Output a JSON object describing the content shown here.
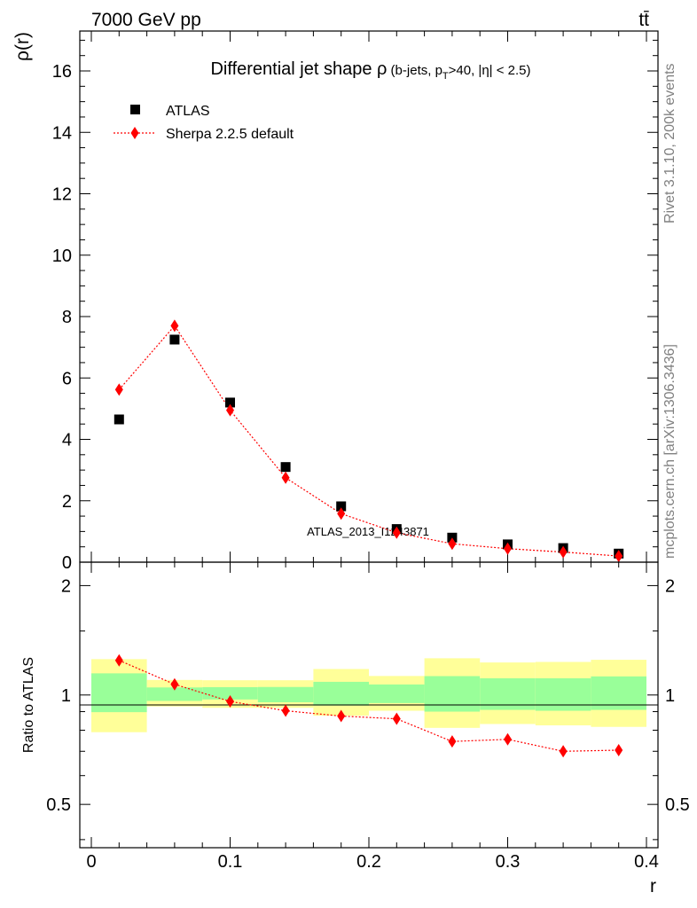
{
  "header": {
    "left_label": "7000 GeV pp",
    "right_label": "tt̄"
  },
  "side_labels": {
    "rivet": "Rivet 3.1.10,  200k events",
    "mcplots": "mcplots.cern.ch [arXiv:1306.3436]"
  },
  "watermark": "ATLAS_2013_I1243871",
  "colors": {
    "data": "#000000",
    "mc": "#ff0000",
    "band_inner": "#99ff99",
    "band_outer": "#ffff99"
  },
  "chart_data": [
    {
      "type": "scatter",
      "panel": "main",
      "title_main": "Differential jet shape ρ",
      "title_sub_pre": " (b-jets, p",
      "title_sub_sub": "T",
      "title_sub_post": ">40, |η| < 2.5)",
      "ylabel": "ρ(r)",
      "xlabel": "",
      "xlim": [
        0,
        0.4
      ],
      "ylim": [
        0,
        17.3
      ],
      "yticks": [
        0,
        2,
        4,
        6,
        8,
        10,
        12,
        14,
        16
      ],
      "ytick_labels": [
        "0",
        "2",
        "4",
        "6",
        "8",
        "10",
        "12",
        "14",
        "16"
      ],
      "legend": {
        "placement": "top-left",
        "entries": [
          "ATLAS",
          "Sherpa 2.2.5 default"
        ]
      },
      "x": [
        0.02,
        0.06,
        0.1,
        0.14,
        0.18,
        0.22,
        0.26,
        0.3,
        0.34,
        0.38
      ],
      "series": [
        {
          "name": "ATLAS",
          "marker": "square",
          "values": [
            4.65,
            7.25,
            5.2,
            3.1,
            1.82,
            1.08,
            0.8,
            0.58,
            0.46,
            0.28
          ]
        },
        {
          "name": "Sherpa 2.2.5 default",
          "marker": "diamond",
          "line": "dotted",
          "values": [
            5.62,
            7.7,
            4.95,
            2.75,
            1.58,
            0.96,
            0.6,
            0.44,
            0.33,
            0.2
          ]
        }
      ]
    },
    {
      "type": "line",
      "panel": "ratio",
      "ylabel": "Ratio to ATLAS",
      "xlabel": "r",
      "xlim": [
        0,
        0.4
      ],
      "ylim": [
        0.38,
        2.32
      ],
      "log_y": true,
      "yticks": [
        0.5,
        1,
        2
      ],
      "ytick_labels": [
        "0.5",
        "1",
        "2"
      ],
      "xticks": [
        0,
        0.1,
        0.2,
        0.3,
        0.4
      ],
      "xtick_labels": [
        "0",
        "0.1",
        "0.2",
        "0.3",
        "0.4"
      ],
      "bins": [
        {
          "lo": 0.0,
          "hi": 0.04,
          "inner": [
            0.897,
            1.147
          ],
          "outer": [
            0.79,
            1.255
          ]
        },
        {
          "lo": 0.04,
          "hi": 0.08,
          "inner": [
            0.963,
            1.049
          ],
          "outer": [
            0.93,
            1.1
          ]
        },
        {
          "lo": 0.08,
          "hi": 0.12,
          "inner": [
            0.972,
            1.051
          ],
          "outer": [
            0.922,
            1.098
          ]
        },
        {
          "lo": 0.12,
          "hi": 0.16,
          "inner": [
            0.955,
            1.052
          ],
          "outer": [
            0.922,
            1.098
          ]
        },
        {
          "lo": 0.16,
          "hi": 0.2,
          "inner": [
            0.935,
            1.087
          ],
          "outer": [
            0.877,
            1.179
          ]
        },
        {
          "lo": 0.2,
          "hi": 0.24,
          "inner": [
            0.95,
            1.069
          ],
          "outer": [
            0.905,
            1.128
          ]
        },
        {
          "lo": 0.24,
          "hi": 0.28,
          "inner": [
            0.9,
            1.127
          ],
          "outer": [
            0.812,
            1.262
          ]
        },
        {
          "lo": 0.28,
          "hi": 0.32,
          "inner": [
            0.91,
            1.112
          ],
          "outer": [
            0.832,
            1.229
          ]
        },
        {
          "lo": 0.32,
          "hi": 0.36,
          "inner": [
            0.905,
            1.112
          ],
          "outer": [
            0.825,
            1.233
          ]
        },
        {
          "lo": 0.36,
          "hi": 0.4,
          "inner": [
            0.91,
            1.125
          ],
          "outer": [
            0.817,
            1.25
          ]
        }
      ],
      "x": [
        0.02,
        0.06,
        0.1,
        0.14,
        0.18,
        0.22,
        0.26,
        0.3,
        0.34,
        0.38
      ],
      "series": [
        {
          "name": "Sherpa 2.2.5 default",
          "values": [
            1.245,
            1.07,
            0.96,
            0.905,
            0.875,
            0.86,
            0.745,
            0.755,
            0.7,
            0.705
          ]
        }
      ]
    }
  ]
}
